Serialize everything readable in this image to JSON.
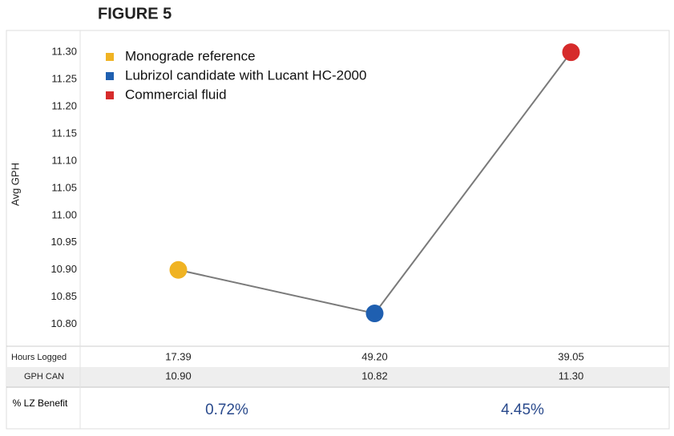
{
  "chart_data": {
    "type": "line",
    "title": "FIGURE 5",
    "y_label": "Avg GPH",
    "categories": [
      "Monograde reference",
      "Lubrizol candidate with Lucant HC-2000",
      "Commercial fluid"
    ],
    "colors": [
      "#f0b323",
      "#1f5fb0",
      "#d62b2b"
    ],
    "line_color": "#7a7a7a",
    "values": [
      10.9,
      10.82,
      11.3
    ],
    "ylim": [
      10.77,
      11.34
    ],
    "yticks": [
      {
        "value": 10.8,
        "label": "10.80"
      },
      10.85,
      {
        "value": 10.9,
        "label": "10.90"
      },
      10.95,
      {
        "value": 11.0,
        "label": "11.00"
      },
      11.05,
      {
        "value": 11.1,
        "label": "11.10"
      },
      11.15,
      {
        "value": 11.2,
        "label": "11.20"
      },
      11.25,
      {
        "value": 11.3,
        "label": "11.30"
      }
    ],
    "grid": false,
    "legend": "upper left"
  },
  "table": {
    "rows": [
      [
        "Hours Logged",
        "17.39",
        "49.20",
        "39.05"
      ],
      [
        "GPH CAN",
        "10.90",
        "10.82",
        "11.30"
      ]
    ],
    "benefit": {
      "label": "% LZ Benefit",
      "values": [
        "0.72%",
        "4.45%"
      ]
    }
  }
}
